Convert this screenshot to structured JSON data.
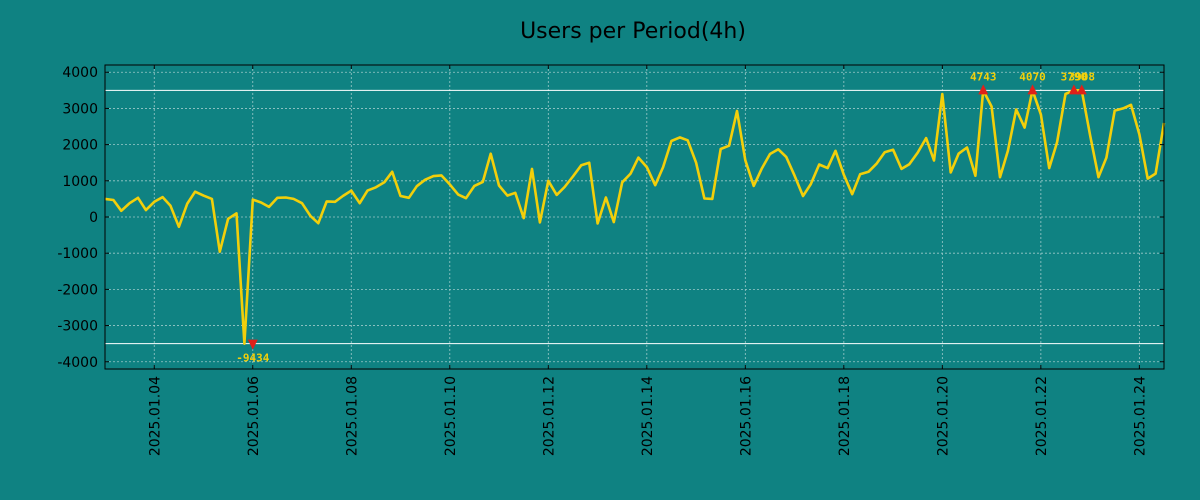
{
  "chart_data": {
    "type": "line",
    "title": "Users per Period(4h)",
    "xlabel": "",
    "ylabel": "",
    "ylim": [
      -4200,
      4200
    ],
    "yticks": [
      4000,
      3000,
      2000,
      1000,
      0,
      -1000,
      -2000,
      -3000,
      -4000
    ],
    "ytick_labels": [
      "4000",
      "3000",
      "2000",
      "1000",
      "0",
      "-1000",
      "-2000",
      "-3000",
      "-4000"
    ],
    "x_range_days": [
      3.0,
      24.5
    ],
    "xtick_days": [
      4,
      6,
      8,
      10,
      12,
      14,
      16,
      18,
      20,
      22,
      24
    ],
    "xtick_labels": [
      "2025.01.04",
      "2025.01.06",
      "2025.01.08",
      "2025.01.10",
      "2025.01.12",
      "2025.01.14",
      "2025.01.16",
      "2025.01.18",
      "2025.01.20",
      "2025.01.22",
      "2025.01.24"
    ],
    "grid": true,
    "reference_lines": [
      3500,
      -3500
    ],
    "colors": {
      "background": "#0f8282",
      "line": "#f2cf0a",
      "marker": "#e0201a",
      "annotation": "#f2cf0a",
      "axes": "#000000",
      "grid": "#9cc9c9",
      "reference": "#ffffff"
    },
    "series": [
      {
        "name": "Users",
        "x": [
          3.0,
          3.17,
          3.33,
          3.5,
          3.67,
          3.83,
          4.0,
          4.17,
          4.33,
          4.5,
          4.67,
          4.83,
          5.0,
          5.17,
          5.33,
          5.5,
          5.67,
          5.83,
          6.0,
          6.17,
          6.33,
          6.5,
          6.67,
          6.83,
          7.0,
          7.17,
          7.33,
          7.5,
          7.67,
          7.83,
          8.0,
          8.17,
          8.33,
          8.5,
          8.67,
          8.83,
          9.0,
          9.17,
          9.33,
          9.5,
          9.67,
          9.83,
          10.0,
          10.17,
          10.33,
          10.5,
          10.67,
          10.83,
          11.0,
          11.17,
          11.33,
          11.5,
          11.67,
          11.83,
          12.0,
          12.17,
          12.33,
          12.5,
          12.67,
          12.83,
          13.0,
          13.17,
          13.33,
          13.5,
          13.67,
          13.83,
          14.0,
          14.17,
          14.33,
          14.5,
          14.67,
          14.83,
          15.0,
          15.17,
          15.33,
          15.5,
          15.67,
          15.83,
          16.0,
          16.17,
          16.33,
          16.5,
          16.67,
          16.83,
          17.0,
          17.17,
          17.33,
          17.5,
          17.67,
          17.83,
          18.0,
          18.17,
          18.33,
          18.5,
          18.67,
          18.83,
          19.0,
          19.17,
          19.33,
          19.5,
          19.67,
          19.83,
          20.0,
          20.17,
          20.33,
          20.5,
          20.67,
          20.83,
          21.0,
          21.17,
          21.33,
          21.5,
          21.67,
          21.83,
          22.0,
          22.17,
          22.33,
          22.5,
          22.67,
          22.83,
          23.0,
          23.17,
          23.33,
          23.5,
          23.67,
          23.83,
          24.0,
          24.17,
          24.33,
          24.5
        ],
        "values": [
          500,
          470,
          170,
          380,
          530,
          190,
          420,
          550,
          310,
          -270,
          370,
          700,
          590,
          500,
          -960,
          -50,
          100,
          -3500,
          480,
          400,
          280,
          530,
          540,
          500,
          380,
          30,
          -170,
          430,
          420,
          580,
          730,
          380,
          730,
          820,
          960,
          1250,
          580,
          530,
          850,
          1030,
          1130,
          1150,
          900,
          620,
          520,
          860,
          970,
          1750,
          870,
          590,
          670,
          -30,
          1330,
          -150,
          1000,
          610,
          830,
          1120,
          1430,
          1500,
          -180,
          540,
          -140,
          960,
          1200,
          1640,
          1380,
          880,
          1380,
          2100,
          2200,
          2120,
          1500,
          510,
          500,
          1880,
          1970,
          2930,
          1570,
          860,
          1330,
          1740,
          1870,
          1660,
          1140,
          580,
          910,
          1450,
          1350,
          1830,
          1170,
          630,
          1180,
          1250,
          1480,
          1790,
          1860,
          1330,
          1460,
          1780,
          2180,
          1560,
          3400,
          1230,
          1750,
          1920,
          1140,
          3500,
          3050,
          1100,
          1830,
          2970,
          2470,
          3500,
          2830,
          1350,
          2070,
          3400,
          3500,
          3500,
          2260,
          1100,
          1640,
          2940,
          3000,
          3100,
          2280,
          1060,
          1200,
          2600
        ]
      }
    ],
    "annotations": [
      {
        "x": 6.0,
        "y": -3500,
        "label": "-9434"
      },
      {
        "x": 20.83,
        "y": 3500,
        "label": "4743"
      },
      {
        "x": 21.83,
        "y": 3500,
        "label": "4070"
      },
      {
        "x": 22.67,
        "y": 3500,
        "label": "3790"
      },
      {
        "x": 22.83,
        "y": 3500,
        "label": "3908"
      }
    ]
  }
}
